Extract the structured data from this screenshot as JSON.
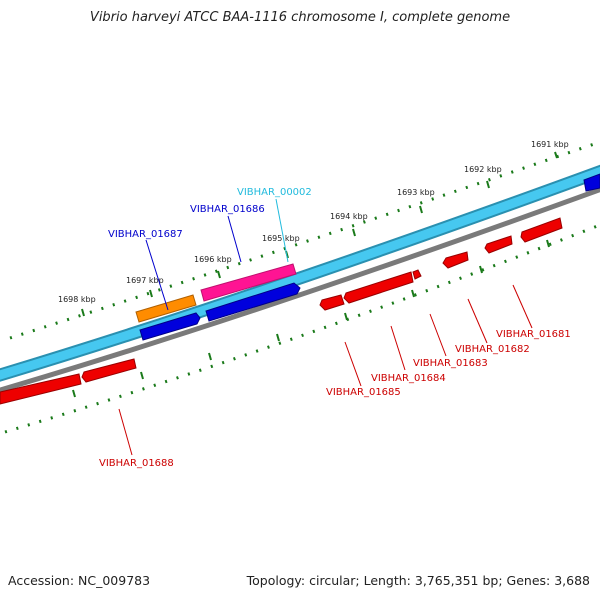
{
  "title": "Vibrio harveyi ATCC BAA-1116 chromosome I, complete genome",
  "footer": {
    "accession": "Accession: NC_009783",
    "summary": "Topology: circular; Length: 3,765,351 bp; Genes: 3,688"
  },
  "colors": {
    "scale_ticks": "#1a7a1a",
    "backbone_cyan": "#46c8f0",
    "backbone_dark": "#2a90b0",
    "reverse_strand_line": "#808080",
    "forward_gene_blue": "#0000dd",
    "forward_gene_orange": "#ff8c00",
    "forward_gene_pink": "#ff1493",
    "reverse_gene_red": "#ee0000",
    "label_blue": "#0000cc",
    "label_cyan": "#22bbdd",
    "label_red": "#cc0000"
  },
  "kbp_labels": [
    "1691 kbp",
    "1692 kbp",
    "1693 kbp",
    "1694 kbp",
    "1695 kbp",
    "1696 kbp",
    "1697 kbp",
    "1698 kbp"
  ],
  "genes": [
    {
      "id": "VIBHAR_00002",
      "strand": "forward",
      "color": "cyan"
    },
    {
      "id": "VIBHAR_01686",
      "strand": "forward",
      "color": "blue"
    },
    {
      "id": "VIBHAR_01687",
      "strand": "forward",
      "color": "blue"
    },
    {
      "id": "VIBHAR_01681",
      "strand": "reverse",
      "color": "red"
    },
    {
      "id": "VIBHAR_01682",
      "strand": "reverse",
      "color": "red"
    },
    {
      "id": "VIBHAR_01683",
      "strand": "reverse",
      "color": "red"
    },
    {
      "id": "VIBHAR_01684",
      "strand": "reverse",
      "color": "red"
    },
    {
      "id": "VIBHAR_01685",
      "strand": "reverse",
      "color": "red"
    },
    {
      "id": "VIBHAR_01688",
      "strand": "reverse",
      "color": "red"
    }
  ]
}
